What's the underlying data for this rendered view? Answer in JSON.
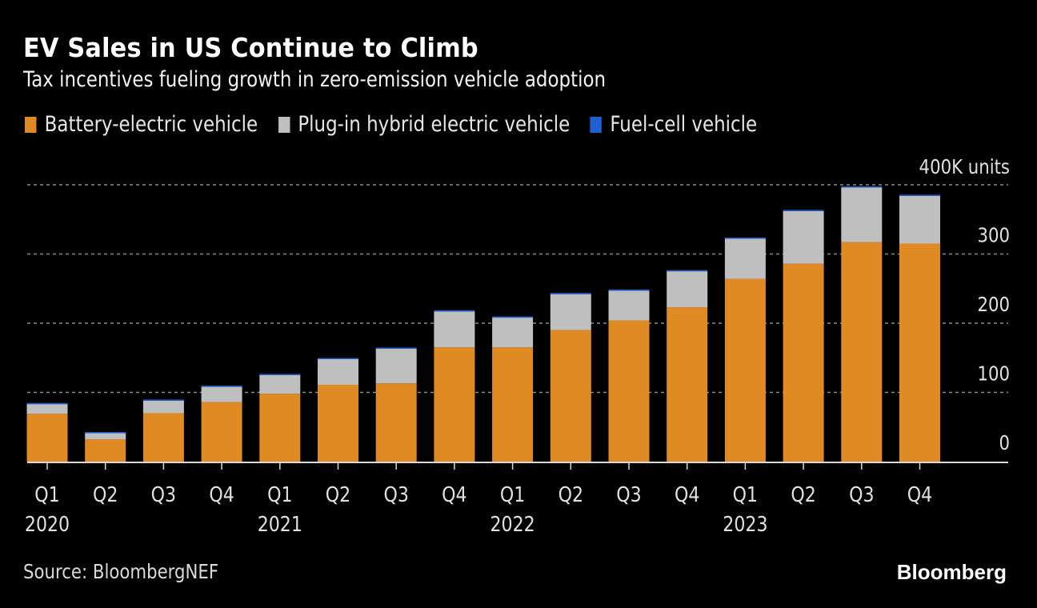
{
  "header": {
    "title": "EV Sales in US Continue to Climb",
    "subtitle": "Tax incentives fueling growth in zero-emission vehicle adoption"
  },
  "footer": {
    "source": "Source: BloombergNEF",
    "brand": "Bloomberg"
  },
  "colors": {
    "background": "#000000",
    "bev": "#e08a24",
    "phev": "#bfbfbf",
    "fcv": "#1e5fd1",
    "grid": "#8c8c8c",
    "axis": "#d9d9d9"
  },
  "chart_data": {
    "type": "bar",
    "stacked": true,
    "title": "EV Sales in US Continue to Climb",
    "subtitle": "Tax incentives fueling growth in zero-emission vehicle adoption",
    "xlabel": "",
    "ylabel": "",
    "unit_label": "400K units",
    "ylim": [
      0,
      400
    ],
    "yticks": [
      0,
      100,
      200,
      300,
      400
    ],
    "ytick_labels": [
      "0",
      "100",
      "200",
      "300",
      "400K units"
    ],
    "y_axis_side": "right",
    "grid": true,
    "legend_position": "top-left",
    "categories": [
      "Q1 2020",
      "Q2 2020",
      "Q3 2020",
      "Q4 2020",
      "Q1 2021",
      "Q2 2021",
      "Q3 2021",
      "Q4 2021",
      "Q1 2022",
      "Q2 2022",
      "Q3 2022",
      "Q4 2022",
      "Q1 2023",
      "Q2 2023",
      "Q3 2023",
      "Q4 2023"
    ],
    "quarter_labels": [
      "Q1",
      "Q2",
      "Q3",
      "Q4",
      "Q1",
      "Q2",
      "Q3",
      "Q4",
      "Q1",
      "Q2",
      "Q3",
      "Q4",
      "Q1",
      "Q2",
      "Q3",
      "Q4"
    ],
    "year_labels": [
      "2020",
      "",
      "",
      "",
      "2021",
      "",
      "",
      "",
      "2022",
      "",
      "",
      "",
      "2023",
      "",
      "",
      ""
    ],
    "series": [
      {
        "name": "Battery-electric vehicle",
        "color": "#e08a24",
        "values": [
          69,
          32,
          70,
          86,
          98,
          111,
          113,
          165,
          165,
          190,
          204,
          223,
          264,
          286,
          317,
          315
        ]
      },
      {
        "name": "Plug-in hybrid electric vehicle",
        "color": "#bfbfbf",
        "values": [
          14,
          9,
          18,
          22,
          27,
          37,
          50,
          52,
          43,
          52,
          43,
          52,
          58,
          76,
          79,
          69
        ]
      },
      {
        "name": "Fuel-cell vehicle",
        "color": "#1e5fd1",
        "values": [
          0.3,
          0.2,
          0.3,
          0.3,
          0.8,
          0.8,
          0.6,
          0.3,
          0.7,
          0.7,
          0.2,
          0.5,
          0.6,
          0.8,
          0.8,
          0.3
        ]
      }
    ]
  }
}
